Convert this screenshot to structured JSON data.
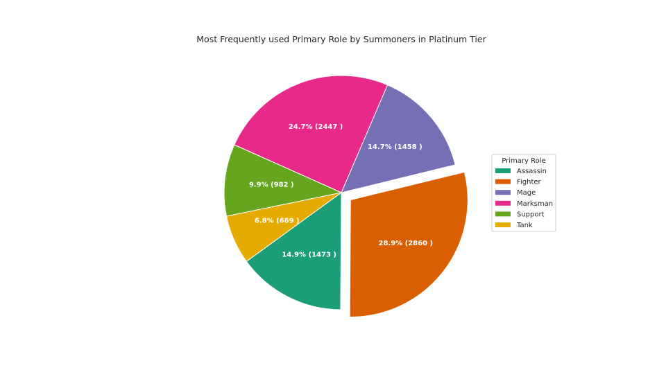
{
  "chart_data": {
    "type": "pie",
    "title": "Most Frequently used Primary Role by Summoners in Platinum Tier",
    "labels": [
      "Assassin",
      "Fighter",
      "Mage",
      "Marksman",
      "Support",
      "Tank"
    ],
    "values": [
      1473,
      2860,
      1458,
      2447,
      982,
      669
    ],
    "percentages": [
      14.9,
      28.9,
      14.7,
      24.7,
      9.9,
      6.8
    ],
    "slice_labels": [
      "14.9% (1473 )",
      "28.9% (2860 )",
      "14.7% (1458 )",
      "24.7% (2447 )",
      "9.9% (982 )",
      "6.8% (669 )"
    ],
    "colors": [
      "#1b9e77",
      "#d95f02",
      "#7570b3",
      "#e7298a",
      "#66a61e",
      "#e6ab02"
    ],
    "exploded": [
      "Fighter"
    ],
    "legend": {
      "title": "Primary Role",
      "placement": "right"
    }
  }
}
